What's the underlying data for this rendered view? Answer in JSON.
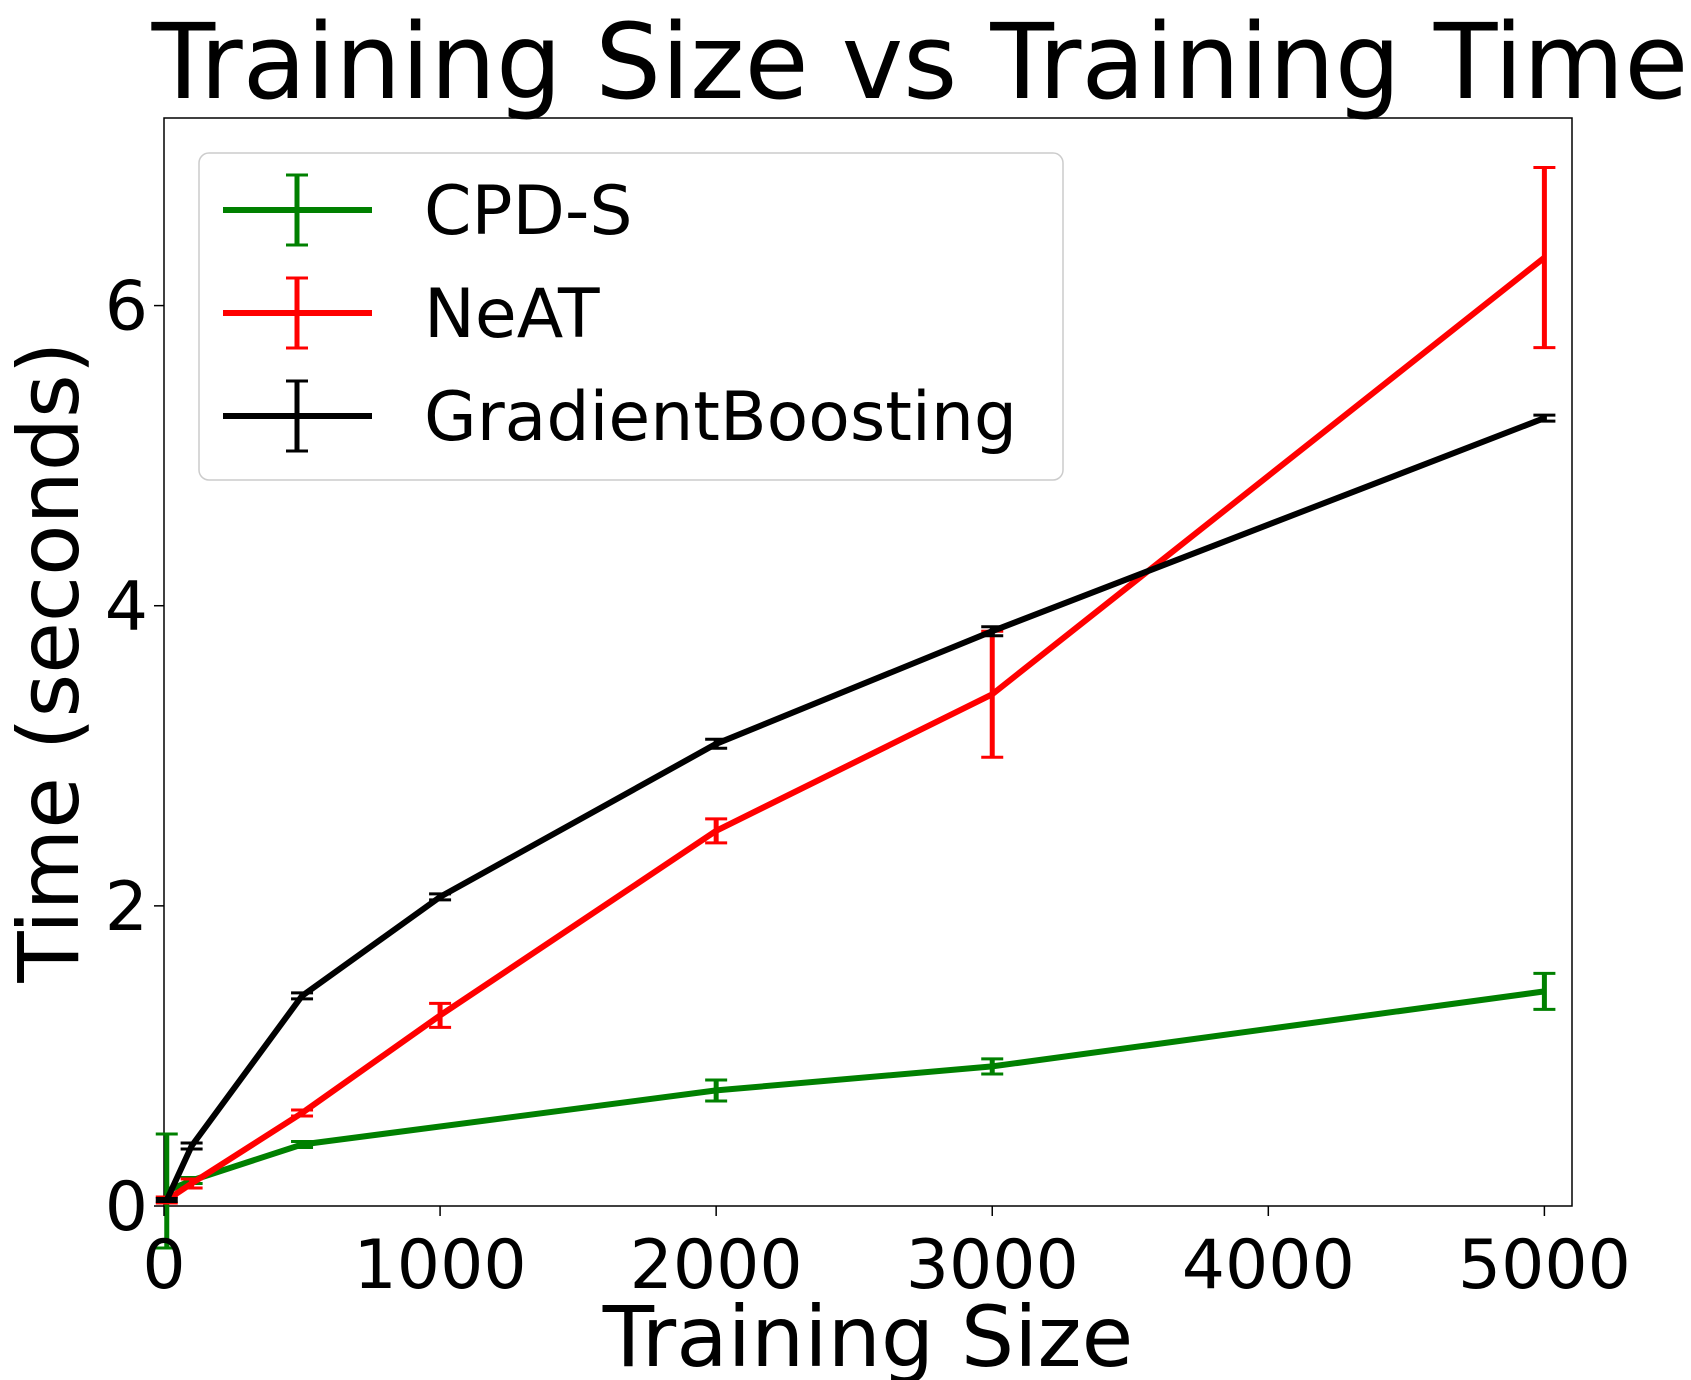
{
  "chart_data": {
    "type": "line",
    "title": "Training Size vs Training Time",
    "xlabel": "Training Size",
    "ylabel": "Time (seconds)",
    "xlim": [
      0,
      5100
    ],
    "ylim": [
      0,
      7.25
    ],
    "xticks": [
      0,
      1000,
      2000,
      3000,
      4000,
      5000
    ],
    "yticks": [
      0,
      2,
      4,
      6
    ],
    "grid": false,
    "legend_position": "upper-left",
    "series": [
      {
        "name": "CPD-S",
        "color": "#008000",
        "points": [
          {
            "x": 10,
            "y": 0.1,
            "err": 0.38
          },
          {
            "x": 100,
            "y": 0.17,
            "err": 0.02
          },
          {
            "x": 500,
            "y": 0.41,
            "err": 0.02
          },
          {
            "x": 2000,
            "y": 0.77,
            "err": 0.07
          },
          {
            "x": 3000,
            "y": 0.93,
            "err": 0.05
          },
          {
            "x": 5000,
            "y": 1.43,
            "err": 0.12
          }
        ]
      },
      {
        "name": "NeAT",
        "color": "#ff0000",
        "points": [
          {
            "x": 10,
            "y": 0.04,
            "err": 0.02
          },
          {
            "x": 100,
            "y": 0.15,
            "err": 0.03
          },
          {
            "x": 500,
            "y": 0.62,
            "err": 0.02
          },
          {
            "x": 1000,
            "y": 1.27,
            "err": 0.08
          },
          {
            "x": 2000,
            "y": 2.5,
            "err": 0.08
          },
          {
            "x": 3000,
            "y": 3.41,
            "err": 0.42
          },
          {
            "x": 5000,
            "y": 6.32,
            "err": 0.6
          }
        ]
      },
      {
        "name": "GradientBoosting",
        "color": "#000000",
        "points": [
          {
            "x": 10,
            "y": 0.04,
            "err": 0.01
          },
          {
            "x": 100,
            "y": 0.4,
            "err": 0.02
          },
          {
            "x": 500,
            "y": 1.4,
            "err": 0.02
          },
          {
            "x": 1000,
            "y": 2.06,
            "err": 0.02
          },
          {
            "x": 2000,
            "y": 3.08,
            "err": 0.03
          },
          {
            "x": 3000,
            "y": 3.83,
            "err": 0.03
          },
          {
            "x": 5000,
            "y": 5.25,
            "err": 0.02
          }
        ]
      }
    ]
  }
}
